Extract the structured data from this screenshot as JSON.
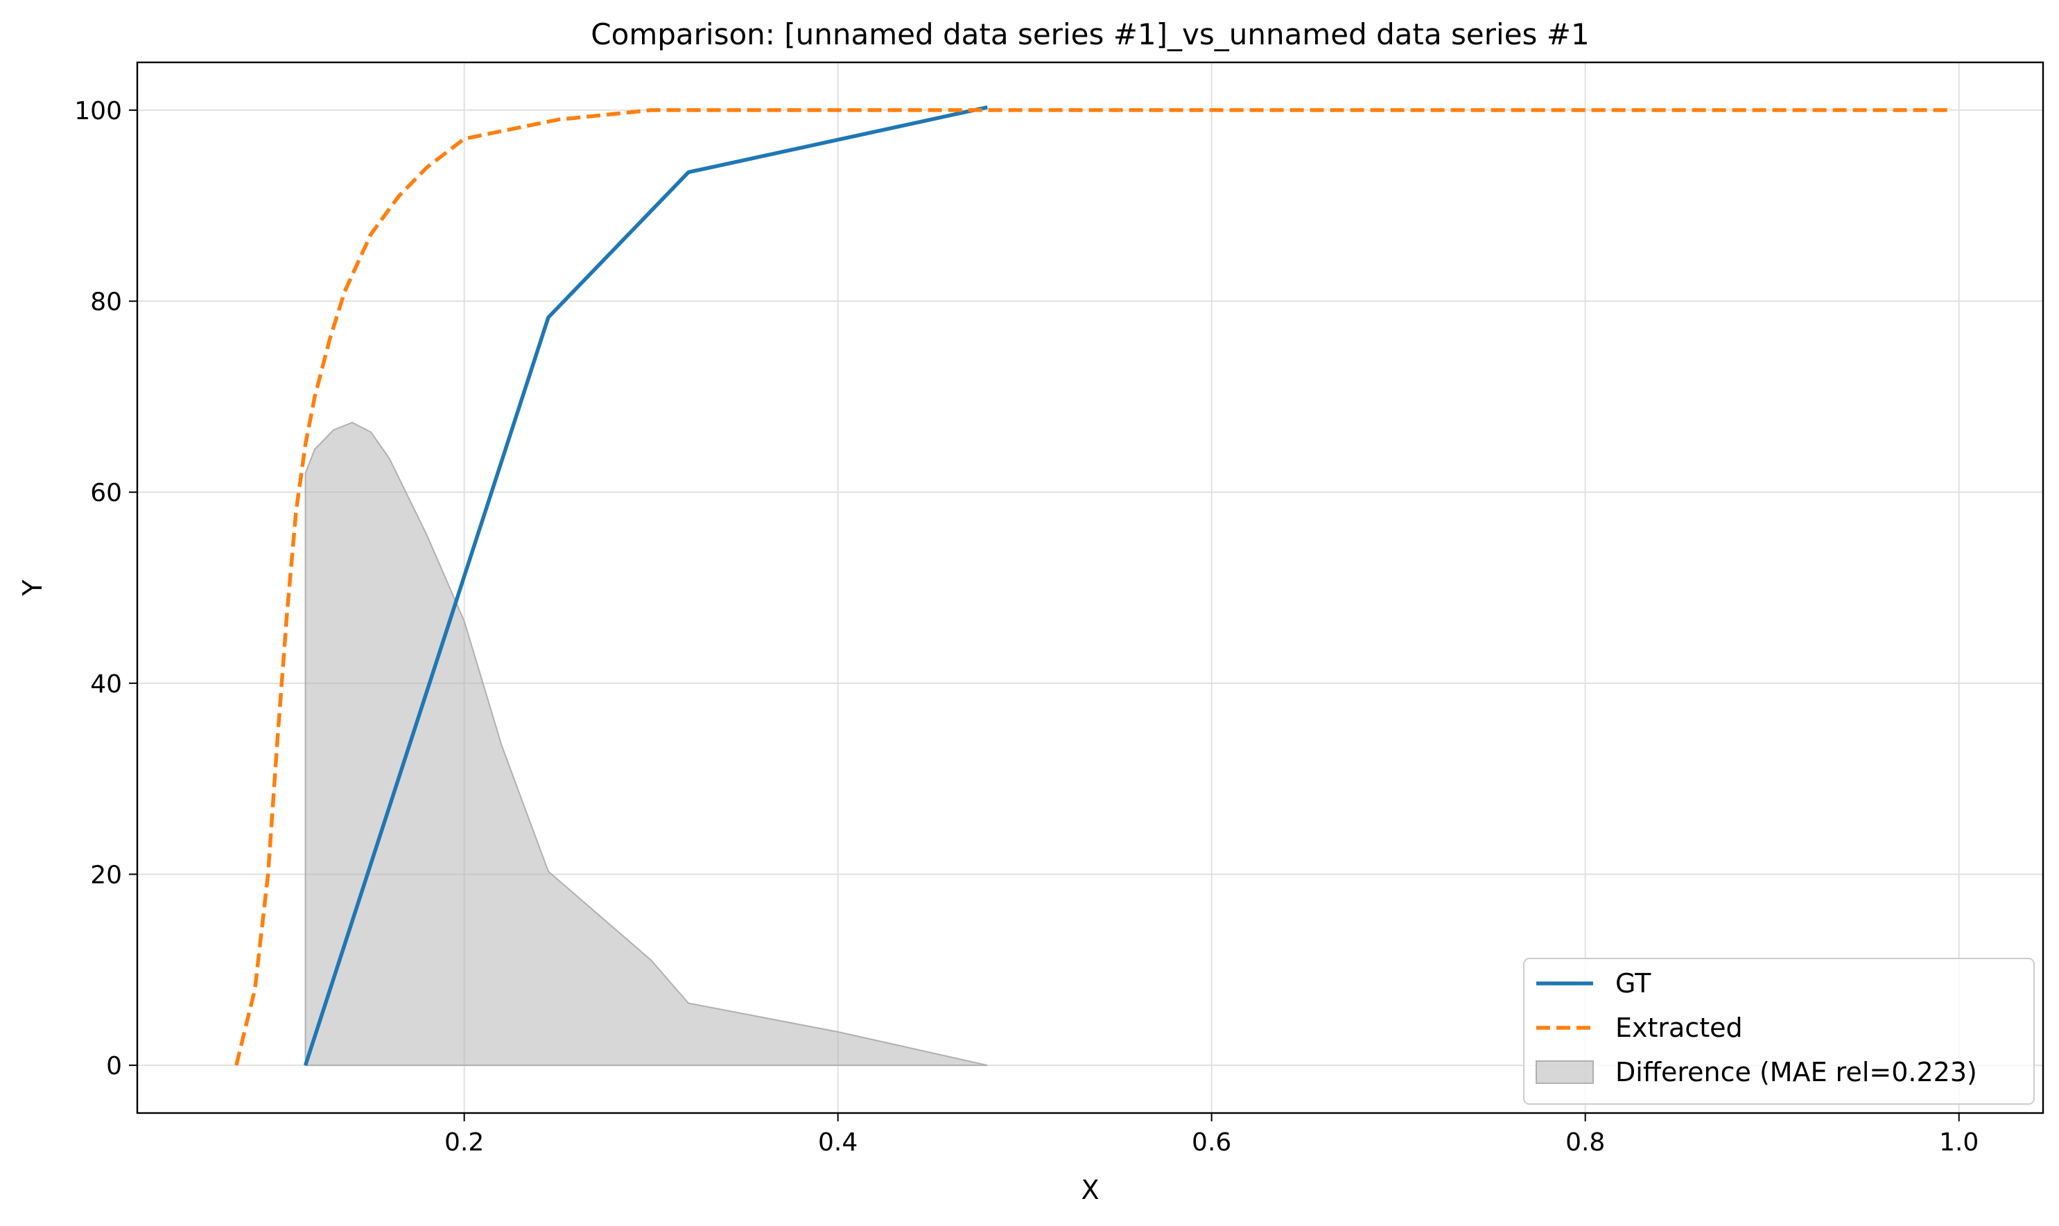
{
  "chart_data": {
    "type": "line",
    "title": "Comparison: [unnamed data series #1]_vs_unnamed data series #1",
    "xlabel": "X",
    "ylabel": "Y",
    "xlim": [
      0.025,
      1.045
    ],
    "ylim": [
      -5,
      105
    ],
    "xticks": [
      0.2,
      0.4,
      0.6,
      0.8,
      1.0
    ],
    "xtick_labels": [
      "0.2",
      "0.4",
      "0.6",
      "0.8",
      "1.0"
    ],
    "yticks": [
      0,
      20,
      40,
      60,
      80,
      100
    ],
    "ytick_labels": [
      "0",
      "20",
      "40",
      "60",
      "80",
      "100"
    ],
    "grid": true,
    "legend_position": "bottom-right",
    "series": [
      {
        "name": "GT",
        "style": "solid",
        "color": "#1f77b4",
        "x": [
          0.115,
          0.245,
          0.32,
          0.48
        ],
        "y": [
          0,
          78.3,
          93.5,
          100.3
        ]
      },
      {
        "name": "Extracted",
        "style": "dashed",
        "color": "#ff7f0e",
        "x": [
          0.078,
          0.088,
          0.095,
          0.1,
          0.105,
          0.11,
          0.115,
          0.12,
          0.128,
          0.136,
          0.15,
          0.165,
          0.18,
          0.2,
          0.25,
          0.3,
          0.4,
          0.6,
          0.8,
          0.995
        ],
        "y": [
          0,
          8,
          20,
          34,
          47,
          58,
          65,
          70,
          76,
          81,
          87,
          91,
          94,
          97,
          99,
          100,
          100,
          100,
          100,
          100
        ]
      },
      {
        "name": "Difference (MAE rel=0.223)",
        "style": "fill",
        "color": "#b0b0b0",
        "x": [
          0.115,
          0.12,
          0.13,
          0.14,
          0.15,
          0.16,
          0.18,
          0.2,
          0.22,
          0.245,
          0.3,
          0.32,
          0.4,
          0.48
        ],
        "y": [
          62,
          64.5,
          66.5,
          67.3,
          66.3,
          63.5,
          55.5,
          46.5,
          33.5,
          20.3,
          11,
          6.5,
          3.5,
          0
        ]
      }
    ]
  }
}
